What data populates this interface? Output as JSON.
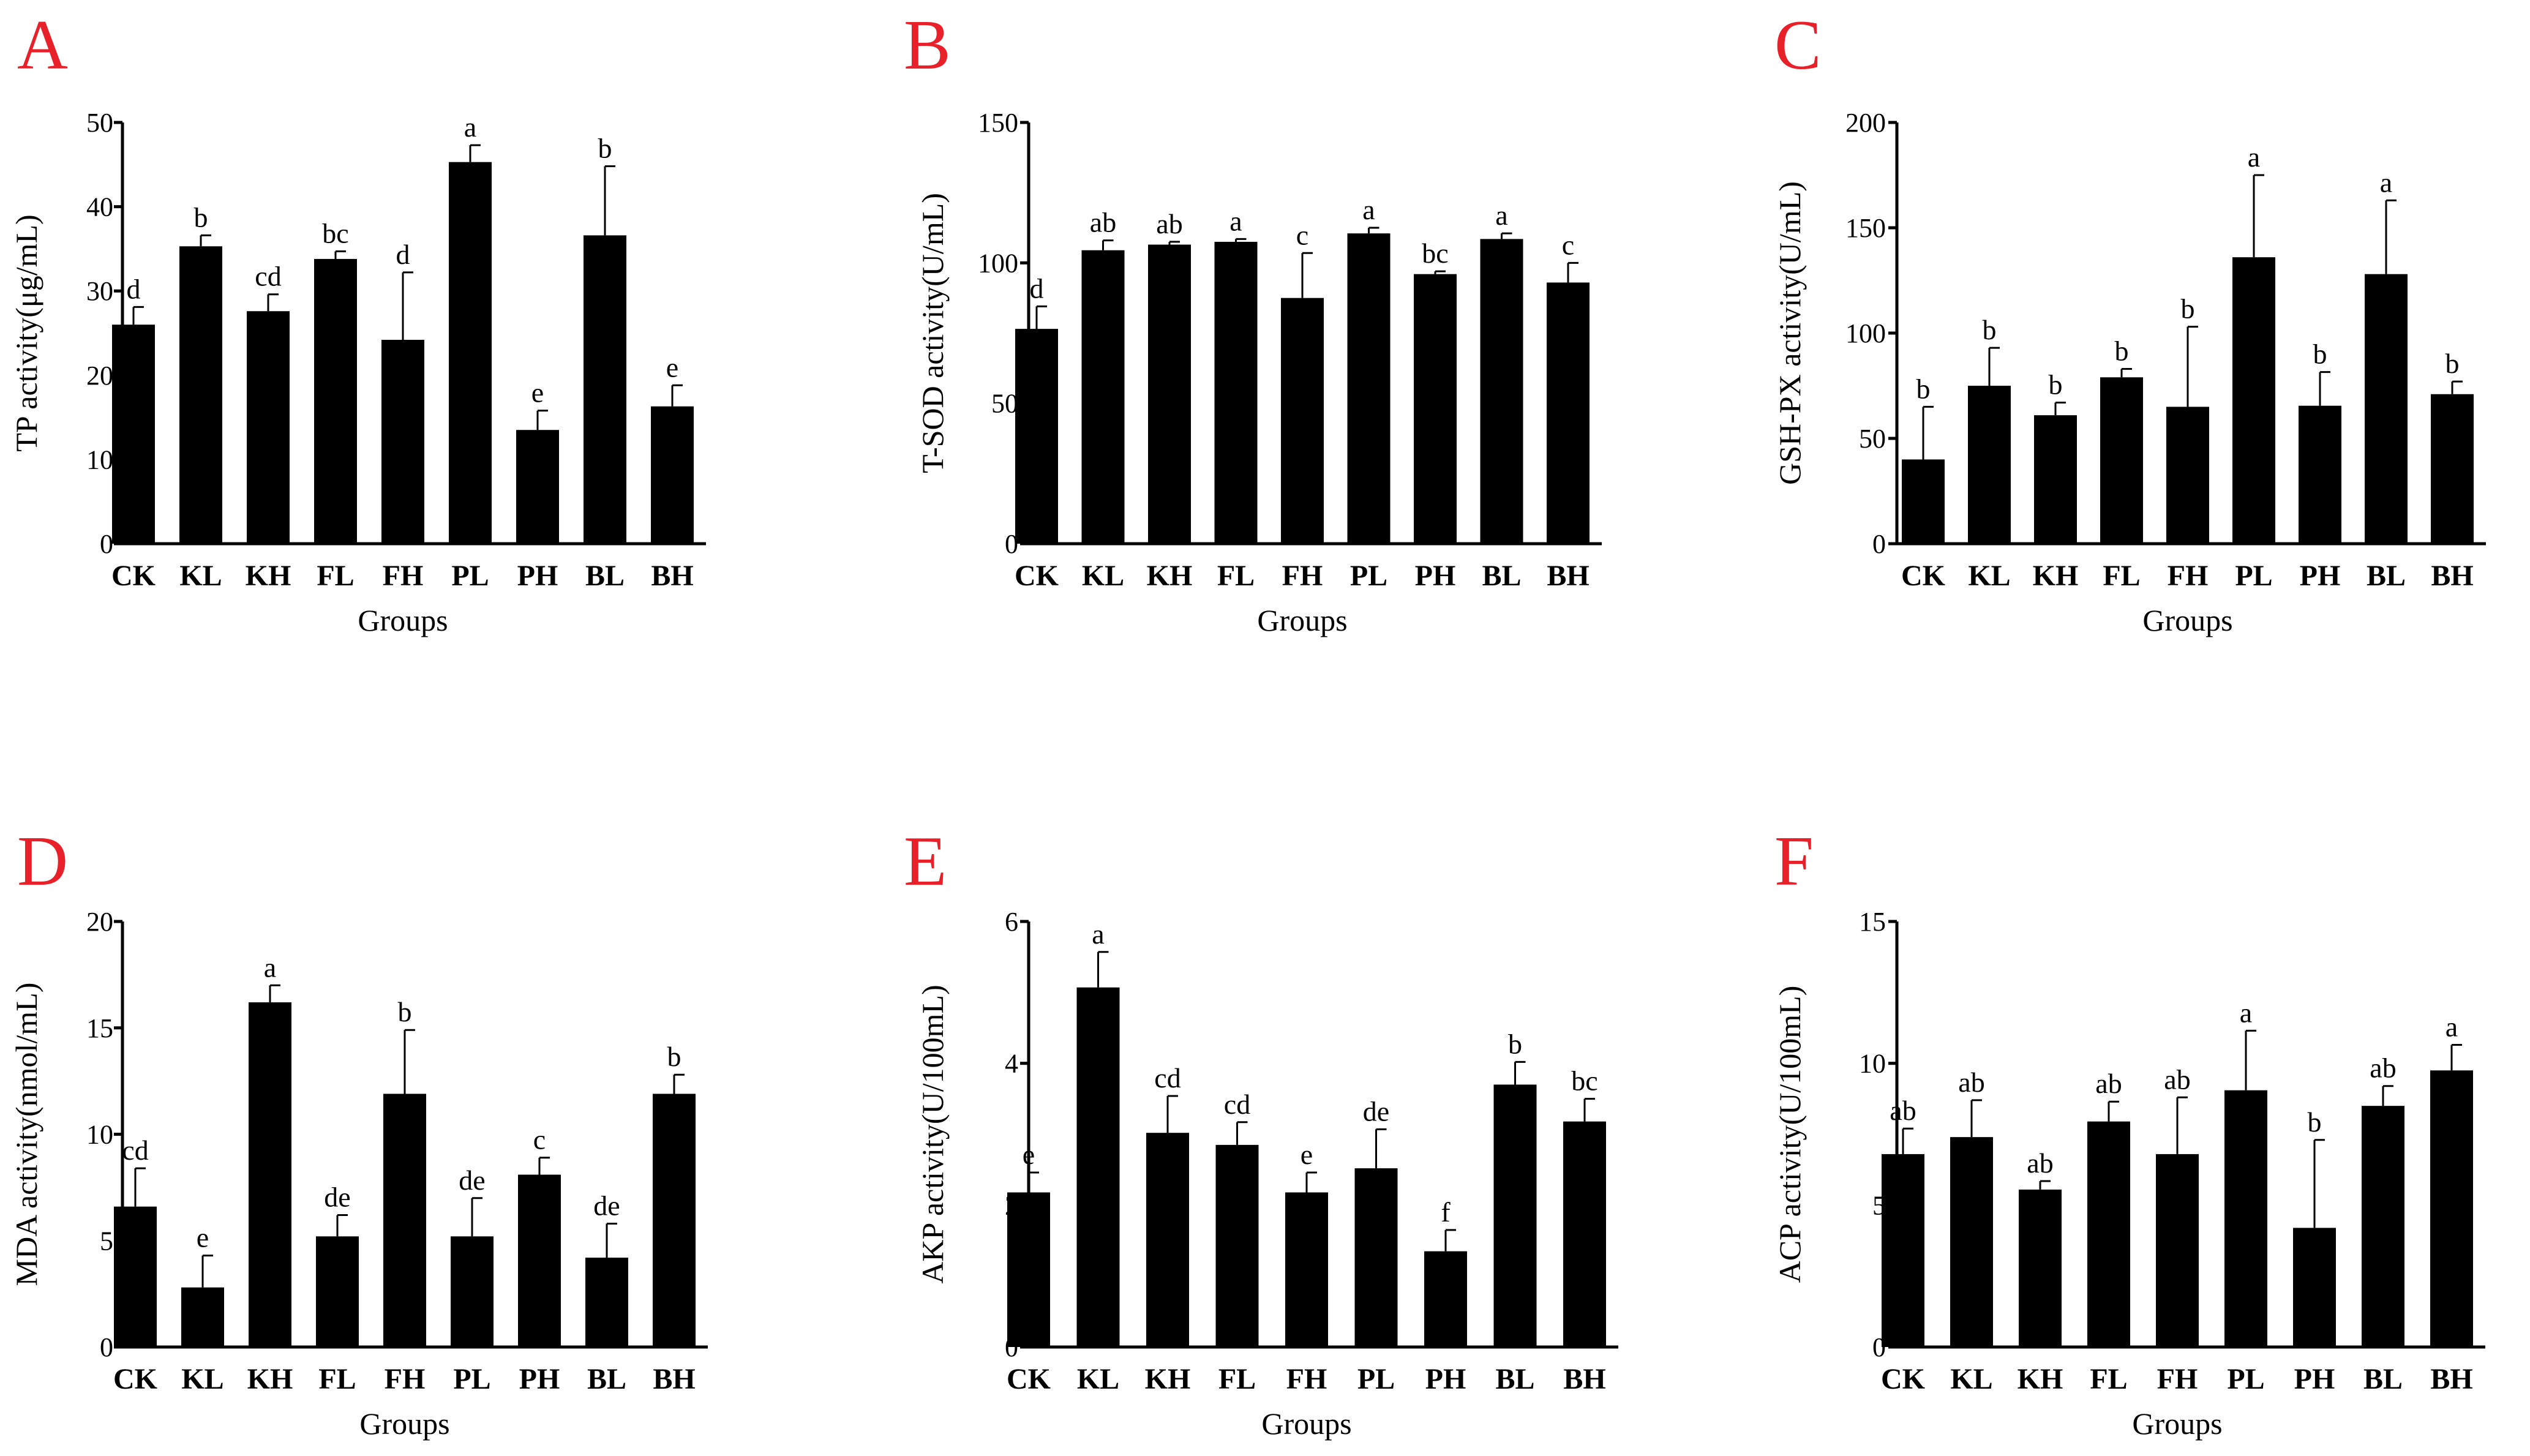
{
  "figure": {
    "letter_color": "#e8202a",
    "bar_color": "#000000"
  },
  "chart_data": [
    {
      "type": "bar",
      "letter": "A",
      "ylabel": "TP activity(μg/mL)",
      "xlabel": "Groups",
      "ylim": [
        0,
        50
      ],
      "yticks": [
        0,
        10,
        20,
        30,
        40,
        50
      ],
      "categories": [
        "CK",
        "KL",
        "KH",
        "FL",
        "FH",
        "PL",
        "PH",
        "BL",
        "BH"
      ],
      "values": [
        26,
        35.3,
        27.6,
        33.8,
        24.2,
        45.3,
        13.5,
        36.6,
        16.3
      ],
      "errors": [
        2.1,
        1.3,
        2,
        0.9,
        8,
        2,
        2.3,
        8.2,
        2.5
      ],
      "letters": [
        "d",
        "b",
        "cd",
        "bc",
        "d",
        "a",
        "e",
        "b",
        "e"
      ]
    },
    {
      "type": "bar",
      "letter": "B",
      "ylabel": "T-SOD activity(U/mL)",
      "xlabel": "Groups",
      "ylim": [
        0,
        150
      ],
      "yticks": [
        0,
        50,
        100,
        150
      ],
      "categories": [
        "CK",
        "KL",
        "KH",
        "FL",
        "FH",
        "PL",
        "PH",
        "BL",
        "BH"
      ],
      "values": [
        76.5,
        104.5,
        106.5,
        107.5,
        87.5,
        110.5,
        96,
        108.5,
        93
      ],
      "errors": [
        8,
        3.5,
        1,
        1,
        16,
        2,
        1,
        2,
        7
      ],
      "letters": [
        "d",
        "ab",
        "ab",
        "a",
        "c",
        "a",
        "bc",
        "a",
        "c"
      ]
    },
    {
      "type": "bar",
      "letter": "C",
      "ylabel": "GSH-PX activity(U/mL)",
      "xlabel": "Groups",
      "ylim": [
        0,
        200
      ],
      "yticks": [
        0,
        50,
        100,
        150,
        200
      ],
      "categories": [
        "CK",
        "KL",
        "KH",
        "FL",
        "FH",
        "PL",
        "PH",
        "BL",
        "BH"
      ],
      "values": [
        40,
        75,
        61,
        79,
        65,
        136,
        65.5,
        128,
        71
      ],
      "errors": [
        25,
        18,
        6,
        4,
        38,
        39,
        16,
        35,
        6
      ],
      "letters": [
        "b",
        "b",
        "b",
        "b",
        "b",
        "a",
        "b",
        "a",
        "b"
      ]
    },
    {
      "type": "bar",
      "letter": "D",
      "ylabel": "MDA activity(nmol/mL)",
      "xlabel": "Groups",
      "ylim": [
        0,
        20
      ],
      "yticks": [
        0,
        5,
        10,
        15,
        20
      ],
      "categories": [
        "CK",
        "KL",
        "KH",
        "FL",
        "FH",
        "PL",
        "PH",
        "BL",
        "BH"
      ],
      "values": [
        6.6,
        2.8,
        16.2,
        5.2,
        11.9,
        5.2,
        8.1,
        4.2,
        11.9
      ],
      "errors": [
        1.8,
        1.5,
        0.8,
        1,
        3,
        1.8,
        0.8,
        1.6,
        0.9
      ],
      "letters": [
        "cd",
        "e",
        "a",
        "de",
        "b",
        "de",
        "c",
        "de",
        "b"
      ]
    },
    {
      "type": "bar",
      "letter": "E",
      "ylabel": "AKP activity(U/100mL)",
      "xlabel": "Groups",
      "ylim": [
        0,
        6
      ],
      "yticks": [
        0,
        2,
        4,
        6
      ],
      "categories": [
        "CK",
        "KL",
        "KH",
        "FL",
        "FH",
        "PL",
        "PH",
        "BL",
        "BH"
      ],
      "values": [
        2.18,
        5.07,
        3.02,
        2.85,
        2.18,
        2.52,
        1.35,
        3.7,
        3.18
      ],
      "errors": [
        0.28,
        0.5,
        0.52,
        0.32,
        0.28,
        0.55,
        0.3,
        0.32,
        0.32
      ],
      "letters": [
        "e",
        "a",
        "cd",
        "cd",
        "e",
        "de",
        "f",
        "b",
        "bc"
      ]
    },
    {
      "type": "bar",
      "letter": "F",
      "ylabel": "ACP activity(U/100mL)",
      "xlabel": "Groups",
      "ylim": [
        0,
        15
      ],
      "yticks": [
        0,
        5,
        10,
        15
      ],
      "categories": [
        "CK",
        "KL",
        "KH",
        "FL",
        "FH",
        "PL",
        "PH",
        "BL",
        "BH"
      ],
      "values": [
        6.8,
        7.4,
        5.55,
        7.95,
        6.8,
        9.05,
        4.2,
        8.5,
        9.75
      ],
      "errors": [
        0.9,
        1.3,
        0.3,
        0.7,
        2,
        2.1,
        3.1,
        0.7,
        0.9
      ],
      "letters": [
        "ab",
        "ab",
        "ab",
        "ab",
        "ab",
        "a",
        "b",
        "ab",
        "a"
      ]
    }
  ]
}
